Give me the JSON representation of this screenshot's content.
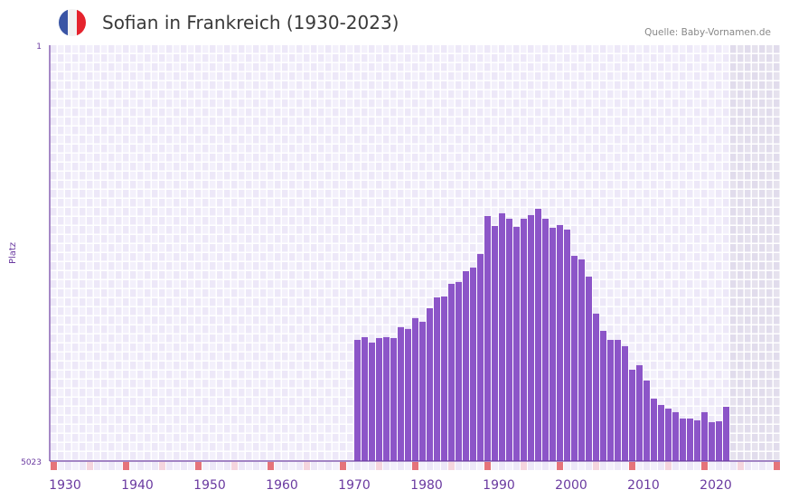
{
  "header": {
    "title": "Sofian in Frankreich (1930-2023)",
    "source": "Quelle: Baby-Vornamen.de",
    "flag_icon": "france-flag-icon"
  },
  "colors": {
    "bar": "#8c55c8",
    "axis": "#6a3aa0",
    "marker_decade": "#e5737a",
    "marker_half": "#f5d5de",
    "future_shade": "#e0dcea"
  },
  "chart_data": {
    "type": "bar",
    "title": "Sofian in Frankreich (1930-2023)",
    "xlabel": "",
    "ylabel": "Platz",
    "ylim": [
      1,
      5023
    ],
    "y_inverted": true,
    "y_tick_labels": [
      "1",
      "5023"
    ],
    "x_tick_labels": [
      "1930",
      "1940",
      "1950",
      "1960",
      "1970",
      "1980",
      "1990",
      "2000",
      "2010",
      "2020"
    ],
    "x_tick_values": [
      1930,
      1940,
      1950,
      1960,
      1970,
      1980,
      1990,
      2000,
      2010,
      2020
    ],
    "grid": true,
    "x": [
      1970,
      1971,
      1972,
      1973,
      1974,
      1975,
      1976,
      1977,
      1978,
      1979,
      1980,
      1981,
      1982,
      1983,
      1984,
      1985,
      1986,
      1987,
      1988,
      1989,
      1990,
      1991,
      1992,
      1993,
      1994,
      1995,
      1996,
      1997,
      1998,
      1999,
      2000,
      2001,
      2002,
      2003,
      2004,
      2005,
      2006,
      2007,
      2008,
      2009,
      2010,
      2011,
      2012,
      2013,
      2014,
      2015,
      2016,
      2017,
      2018,
      2019,
      2020,
      2021
    ],
    "values": [
      3560,
      3527,
      3592,
      3538,
      3527,
      3538,
      3406,
      3428,
      3297,
      3341,
      3178,
      3047,
      3036,
      2883,
      2861,
      2730,
      2687,
      2523,
      2064,
      2184,
      2031,
      2097,
      2195,
      2097,
      2053,
      1977,
      2097,
      2206,
      2173,
      2228,
      2545,
      2588,
      2796,
      3243,
      3451,
      3560,
      3560,
      3636,
      3920,
      3866,
      4051,
      4270,
      4346,
      4390,
      4433,
      4510,
      4510,
      4532,
      4433,
      4554,
      4543,
      4368
    ]
  }
}
